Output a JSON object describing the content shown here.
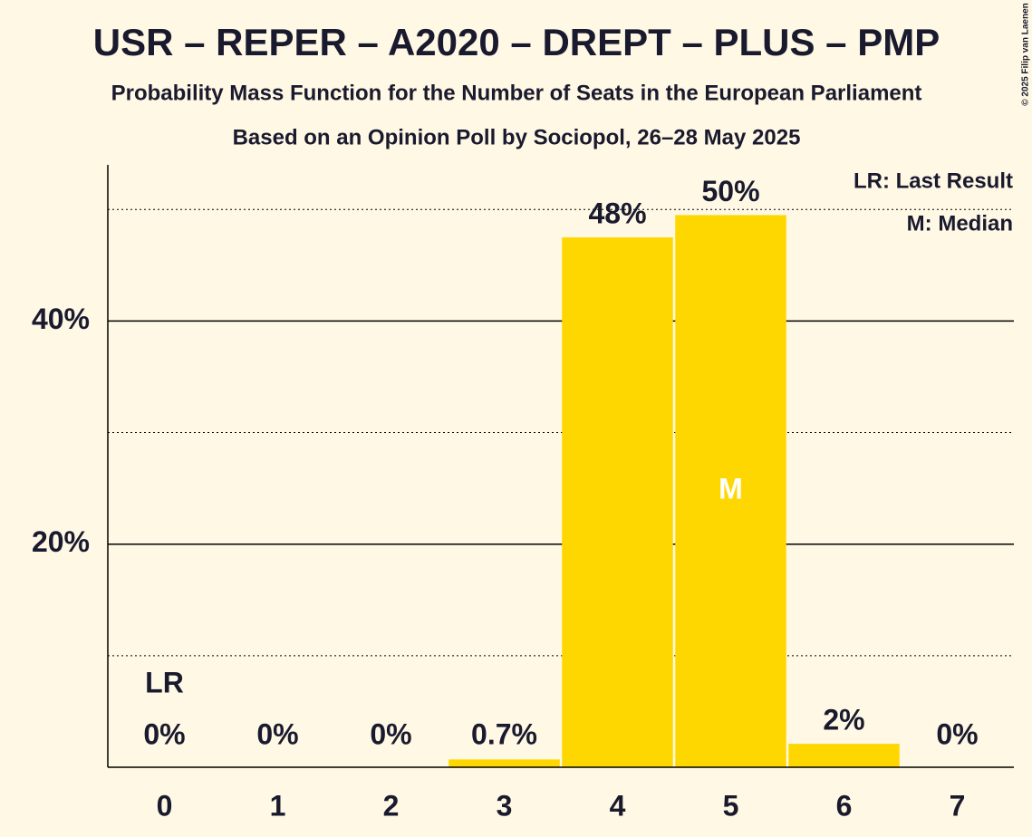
{
  "chart_data": {
    "type": "bar",
    "title": "USR – REPER – A2020 – DREPT – PLUS – PMP",
    "subtitle": "Probability Mass Function for the Number of Seats in the European Parliament",
    "subtitle2": "Based on an Opinion Poll by Sociopol, 26–28 May 2025",
    "categories": [
      "0",
      "1",
      "2",
      "3",
      "4",
      "5",
      "6",
      "7"
    ],
    "values": [
      0,
      0,
      0,
      0.7,
      47.5,
      49.5,
      2.1,
      0
    ],
    "value_labels": [
      "0%",
      "0%",
      "0%",
      "0.7%",
      "48%",
      "50%",
      "2%",
      "0%"
    ],
    "color": "#ffd700",
    "ylim": [
      0,
      54
    ],
    "yticks": [
      {
        "value": 20,
        "label": "20%"
      },
      {
        "value": 40,
        "label": "40%"
      }
    ],
    "yminor": [
      10,
      30,
      50
    ],
    "grid": true,
    "annotations": [
      {
        "category": 0,
        "text": "LR"
      },
      {
        "category": 5,
        "text": "M"
      }
    ],
    "legend": [
      "LR: Last Result",
      "M: Median"
    ],
    "copyright": "© 2025 Filip van Laenen"
  }
}
